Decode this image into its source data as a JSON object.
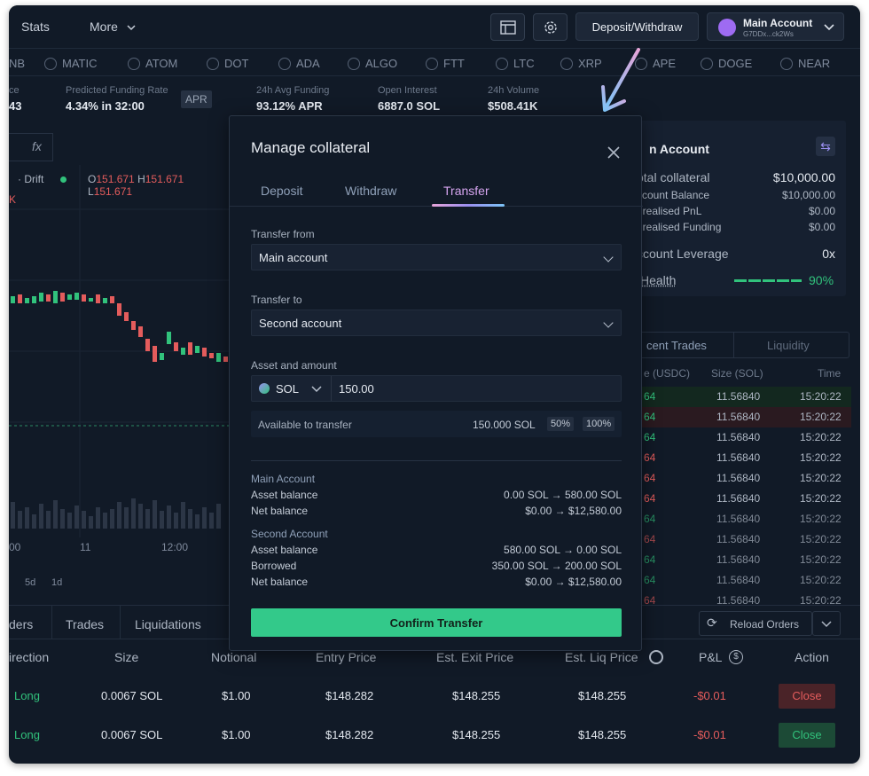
{
  "nav": {
    "stats": "Stats",
    "more": "More"
  },
  "header": {
    "deposit_withdraw": "Deposit/Withdraw",
    "account_name": "Main Account",
    "account_address": "G7DDx...ck2Ws"
  },
  "markets": [
    {
      "label": "NB"
    },
    {
      "label": "MATIC"
    },
    {
      "label": "ATOM"
    },
    {
      "label": "DOT"
    },
    {
      "label": "ADA"
    },
    {
      "label": "ALGO"
    },
    {
      "label": "FTT"
    },
    {
      "label": "LTC"
    },
    {
      "label": "XRP"
    },
    {
      "label": "APE"
    },
    {
      "label": "DOGE"
    },
    {
      "label": "NEAR"
    }
  ],
  "stats": {
    "price_label": "ce",
    "price_value": "43",
    "funding_label": "Predicted Funding Rate",
    "funding_value": "4.34%",
    "funding_time": "in 32:00",
    "apr": "APR",
    "avg_label": "24h Avg Funding",
    "avg_value": "93.12% APR",
    "oi_label": "Open Interest",
    "oi_value": "6887.0 SOL",
    "vol_label": "24h Volume",
    "vol_value": "$508.41K"
  },
  "chart": {
    "fx": "fx",
    "source": "Drift",
    "o": "151.671",
    "h": "151.671",
    "l": "151.671",
    "k": "K",
    "time_labels": [
      "00",
      "11",
      "12:00"
    ],
    "ranges": [
      "5d",
      "1d"
    ]
  },
  "account_panel": {
    "title": "n Account",
    "rows": [
      {
        "label": "otal collateral",
        "value": "$10,000.00"
      },
      {
        "label": "ccount Balance",
        "value": "$10,000.00"
      },
      {
        "label": "nrealised PnL",
        "value": "$0.00"
      },
      {
        "label": "nrealised Funding",
        "value": "$0.00"
      }
    ],
    "leverage_label": "ccount Leverage",
    "leverage_value": "0x",
    "health_label": "Health",
    "health_value": "90%",
    "health_fraction": 0.9
  },
  "trades_panel": {
    "tab_trades": "cent Trades",
    "tab_liquidity": "Liquidity",
    "col_price": "e (USDC)",
    "col_size": "Size (SOL)",
    "col_time": "Time",
    "rows": [
      {
        "p": "64",
        "s": "11.56840",
        "t": "15:20:22",
        "c": "#31c27c"
      },
      {
        "p": "64",
        "s": "11.56840",
        "t": "15:20:22",
        "c": "#31c27c"
      },
      {
        "p": "64",
        "s": "11.56840",
        "t": "15:20:22",
        "c": "#31c27c"
      },
      {
        "p": "64",
        "s": "11.56840",
        "t": "15:20:22",
        "c": "#e45c5c"
      },
      {
        "p": "64",
        "s": "11.56840",
        "t": "15:20:22",
        "c": "#e45c5c"
      },
      {
        "p": "64",
        "s": "11.56840",
        "t": "15:20:22",
        "c": "#e45c5c"
      },
      {
        "p": "64",
        "s": "11.56840",
        "t": "15:20:22",
        "c": "#31c27c"
      },
      {
        "p": "64",
        "s": "11.56840",
        "t": "15:20:22",
        "c": "#e45c5c"
      },
      {
        "p": "64",
        "s": "11.56840",
        "t": "15:20:22",
        "c": "#31c27c"
      },
      {
        "p": "64",
        "s": "11.56840",
        "t": "15:20:22",
        "c": "#31c27c"
      },
      {
        "p": "64",
        "s": "11.56840",
        "t": "15:20:22",
        "c": "#e45c5c"
      }
    ]
  },
  "orders": {
    "tabs": [
      "ders",
      "Trades",
      "Liquidations"
    ],
    "reload": "Reload Orders",
    "columns": [
      "irection",
      "Size",
      "Notional",
      "Entry Price",
      "Est. Exit Price",
      "Est. Liq Price",
      "P&L",
      "Action"
    ],
    "rows": [
      {
        "dir": "Long",
        "size": "0.0067 SOL",
        "notional": "$1.00",
        "entry": "$148.282",
        "exit": "$148.255",
        "liq": "$148.255",
        "pnl": "-$0.01",
        "action": "Close"
      },
      {
        "dir": "Long",
        "size": "0.0067 SOL",
        "notional": "$1.00",
        "entry": "$148.282",
        "exit": "$148.255",
        "liq": "$148.255",
        "pnl": "-$0.01",
        "action": "Close"
      }
    ]
  },
  "modal": {
    "title": "Manage collateral",
    "tabs": {
      "deposit": "Deposit",
      "withdraw": "Withdraw",
      "transfer": "Transfer"
    },
    "from_label": "Transfer from",
    "from_value": "Main account",
    "to_label": "Transfer to",
    "to_value": "Second account",
    "asset_label": "Asset and amount",
    "asset": "SOL",
    "amount": "150.00",
    "available_label": "Available to transfer",
    "available_value": "150.000 SOL",
    "pct50": "50%",
    "pct100": "100%",
    "main_title": "Main Account",
    "main_asset_label": "Asset balance",
    "main_asset_value": "0.00 SOL → 580.00 SOL",
    "main_net_label": "Net balance",
    "main_net_value": "$0.00 → $12,580.00",
    "second_title": "Second Account",
    "second_asset_label": "Asset balance",
    "second_asset_value": "580.00 SOL → 0.00 SOL",
    "second_borrowed_label": "Borrowed",
    "second_borrowed_value": "350.00 SOL → 200.00 SOL",
    "second_net_label": "Net balance",
    "second_net_value": "$0.00 → $12,580.00",
    "confirm": "Confirm Transfer"
  },
  "colors": {
    "accent_green": "#33c98a",
    "red": "#e45c5c",
    "transfer_tab": "#d6a5f0"
  }
}
